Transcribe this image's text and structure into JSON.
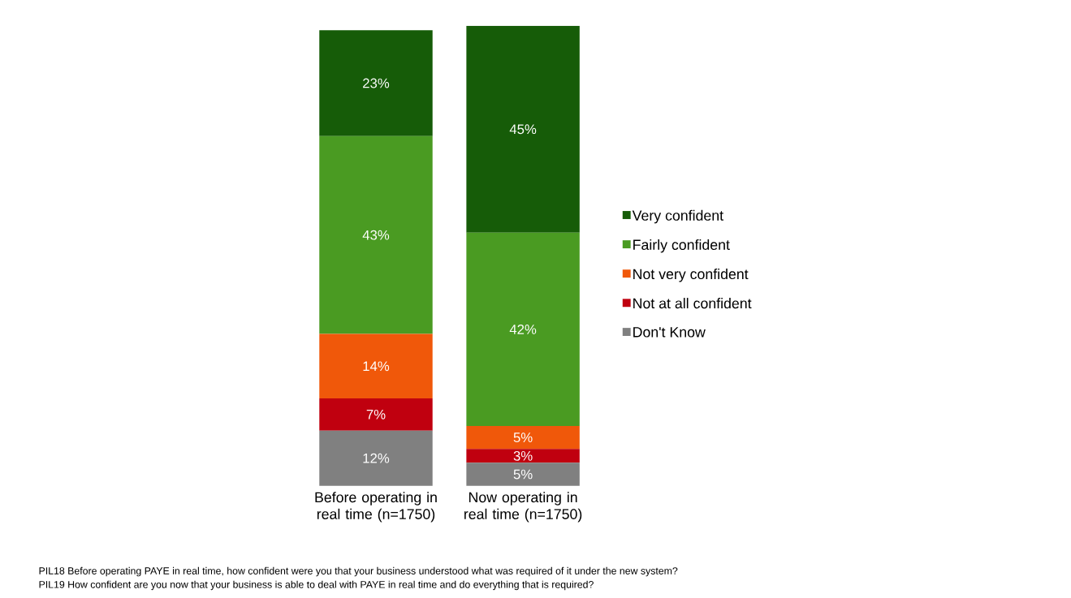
{
  "chart_data": {
    "type": "bar",
    "stacked": true,
    "categories": [
      "Before operating in real time (n=1750)",
      "Now operating in real time (n=1750)"
    ],
    "series": [
      {
        "name": "Don't Know",
        "color": "#808080",
        "values": [
          12,
          5
        ],
        "value_labels": [
          "12%",
          "5%"
        ]
      },
      {
        "name": "Not at all confident",
        "color": "#c0000f",
        "values": [
          7,
          3
        ],
        "value_labels": [
          "7%",
          "3%"
        ]
      },
      {
        "name": "Not very confident",
        "color": "#f0580a",
        "values": [
          14,
          5
        ],
        "value_labels": [
          "14%",
          "5%"
        ]
      },
      {
        "name": "Fairly confident",
        "color": "#4a9b22",
        "values": [
          43,
          42
        ],
        "value_labels": [
          "43%",
          "42%"
        ]
      },
      {
        "name": "Very confident",
        "color": "#165c08",
        "values": [
          23,
          45
        ],
        "value_labels": [
          "23%",
          "45%"
        ]
      }
    ],
    "legend": "right",
    "annotations": [
      "PIL18 Before operating PAYE in real time, how confident were you that your business understood what was required of it under the new system?",
      "PIL19 How confident are you now that your business is able to deal with PAYE in real time and do everything that is required?"
    ]
  }
}
